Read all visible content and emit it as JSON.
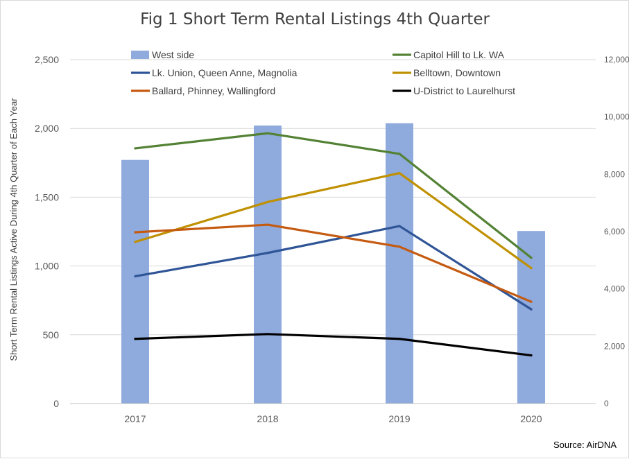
{
  "chart_data": {
    "type": "bar",
    "title": "Fig 1 Short Term Rental Listings 4th Quarter",
    "ylabel": "Short Term Rental Listings Active During 4th Quarter of Each Year",
    "y2label": "",
    "xlabel": "",
    "categories": [
      "2017",
      "2018",
      "2019",
      "2020"
    ],
    "ylim": [
      0,
      2500
    ],
    "y2lim": [
      0,
      12000
    ],
    "yticks": [
      "0",
      "500",
      "1,000",
      "1,500",
      "2,000",
      "2,500"
    ],
    "y2ticks": [
      "0",
      "2,000",
      "4,000",
      "6,000",
      "8,000",
      "10,000",
      "12,000"
    ],
    "legend_position": "top",
    "grid": true,
    "series": [
      {
        "name": "West side",
        "kind": "bar",
        "axis": "right",
        "color": "#8faadc",
        "values": [
          8500,
          9700,
          9780,
          6020
        ]
      },
      {
        "name": "Capitol Hill to Lk. WA",
        "kind": "line",
        "axis": "left",
        "color": "#548235",
        "values": [
          1855,
          1965,
          1815,
          1060
        ]
      },
      {
        "name": "Lk. Union, Queen Anne, Magnolia",
        "kind": "line",
        "axis": "left",
        "color": "#2f5597",
        "values": [
          925,
          1095,
          1290,
          685
        ]
      },
      {
        "name": "Belltown, Downtown",
        "kind": "line",
        "axis": "left",
        "color": "#bf9000",
        "values": [
          1175,
          1465,
          1675,
          985
        ]
      },
      {
        "name": "Ballard, Phinney, Wallingford",
        "kind": "line",
        "axis": "left",
        "color": "#c55a11",
        "values": [
          1245,
          1300,
          1140,
          740
        ]
      },
      {
        "name": "U-District to Laurelhurst",
        "kind": "line",
        "axis": "left",
        "color": "#000000",
        "values": [
          470,
          505,
          470,
          350
        ]
      }
    ],
    "source": "Source: AirDNA"
  }
}
